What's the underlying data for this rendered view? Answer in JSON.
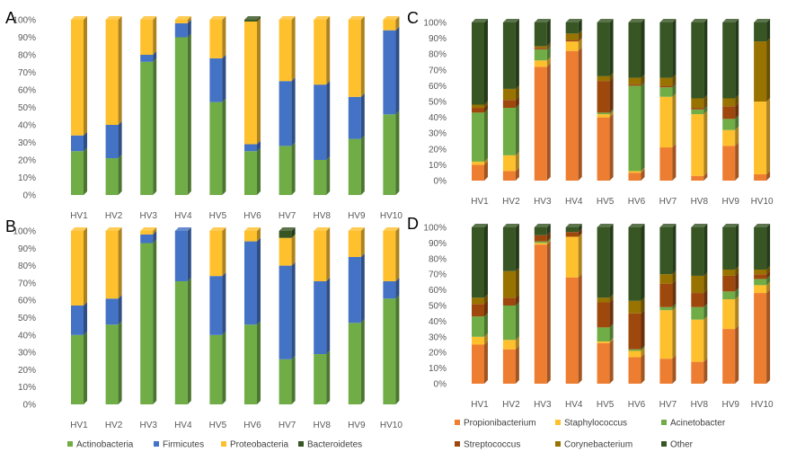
{
  "chart_data": [
    {
      "panel": "A",
      "type": "bar",
      "stacked": true,
      "percent": true,
      "ylim": [
        0,
        100
      ],
      "yticks": [
        "0%",
        "10%",
        "20%",
        "30%",
        "40%",
        "50%",
        "60%",
        "70%",
        "80%",
        "90%",
        "100%"
      ],
      "categories": [
        "HV1",
        "HV2",
        "HV3",
        "HV4",
        "HV5",
        "HV6",
        "HV7",
        "HV8",
        "HV9",
        "HV10"
      ],
      "series": [
        {
          "name": "Actinobacteria",
          "color": "#70ad47",
          "values": [
            25,
            21,
            76,
            90,
            53,
            25,
            28,
            20,
            32,
            46
          ]
        },
        {
          "name": "Firmicutes",
          "color": "#4472c4",
          "values": [
            9,
            19,
            4,
            8,
            25,
            4,
            37,
            43,
            24,
            48
          ]
        },
        {
          "name": "Proteobacteria",
          "color": "#ffc02d",
          "values": [
            66,
            60,
            20,
            2,
            22,
            70,
            35,
            37,
            44,
            6
          ]
        },
        {
          "name": "Bacteroidetes",
          "color": "#375623",
          "values": [
            0,
            0,
            0,
            0,
            0,
            1,
            0,
            0,
            0,
            0
          ]
        }
      ]
    },
    {
      "panel": "B",
      "type": "bar",
      "stacked": true,
      "percent": true,
      "ylim": [
        0,
        100
      ],
      "yticks": [
        "0%",
        "10%",
        "20%",
        "30%",
        "40%",
        "50%",
        "60%",
        "70%",
        "80%",
        "90%",
        "100%"
      ],
      "categories": [
        "HV1",
        "HV2",
        "HV3",
        "HV4",
        "HV5",
        "HV6",
        "HV7",
        "HV8",
        "HV9",
        "HV10"
      ],
      "series": [
        {
          "name": "Actinobacteria",
          "color": "#70ad47",
          "values": [
            40,
            46,
            93,
            71,
            40,
            46,
            26,
            29,
            47,
            61
          ]
        },
        {
          "name": "Firmicutes",
          "color": "#4472c4",
          "values": [
            17,
            15,
            5,
            29,
            34,
            48,
            54,
            42,
            38,
            10
          ]
        },
        {
          "name": "Proteobacteria",
          "color": "#ffc02d",
          "values": [
            43,
            39,
            2,
            0,
            26,
            6,
            16,
            29,
            15,
            29
          ]
        },
        {
          "name": "Bacteroidetes",
          "color": "#375623",
          "values": [
            0,
            0,
            0,
            0,
            0,
            0,
            4,
            0,
            0,
            0
          ]
        }
      ]
    },
    {
      "panel": "C",
      "type": "bar",
      "stacked": true,
      "percent": true,
      "ylim": [
        0,
        100
      ],
      "yticks": [
        "0%",
        "10%",
        "20%",
        "30%",
        "40%",
        "50%",
        "60%",
        "70%",
        "80%",
        "90%",
        "100%"
      ],
      "categories": [
        "HV1",
        "HV2",
        "HV3",
        "HV4",
        "HV5",
        "HV6",
        "HV7",
        "HV8",
        "HV9",
        "HV10"
      ],
      "series": [
        {
          "name": "Propionibacterium",
          "color": "#ed7d31",
          "values": [
            10,
            6,
            72,
            82,
            40,
            5,
            21,
            3,
            22,
            4
          ]
        },
        {
          "name": "Staphylococcus",
          "color": "#ffc02d",
          "values": [
            2,
            10,
            4,
            6,
            2,
            1,
            32,
            39,
            10,
            46
          ]
        },
        {
          "name": "Acinetobacter",
          "color": "#70ad47",
          "values": [
            31,
            30,
            7,
            0,
            1,
            54,
            6,
            3,
            7,
            0
          ]
        },
        {
          "name": "Streptococcus",
          "color": "#9e480e",
          "values": [
            3,
            5,
            1,
            1,
            20,
            1,
            1,
            1,
            8,
            0
          ]
        },
        {
          "name": "Corynebacterium",
          "color": "#997300",
          "values": [
            2,
            7,
            1,
            4,
            3,
            4,
            5,
            6,
            5,
            38
          ]
        },
        {
          "name": "Other",
          "color": "#375623",
          "values": [
            52,
            42,
            15,
            7,
            34,
            35,
            35,
            48,
            48,
            12
          ]
        }
      ]
    },
    {
      "panel": "D",
      "type": "bar",
      "stacked": true,
      "percent": true,
      "ylim": [
        0,
        100
      ],
      "yticks": [
        "0%",
        "10%",
        "20%",
        "30%",
        "40%",
        "50%",
        "60%",
        "70%",
        "80%",
        "90%",
        "100%"
      ],
      "categories": [
        "HV1",
        "HV2",
        "HV3",
        "HV4",
        "HV5",
        "HV6",
        "HV7",
        "HV8",
        "HV9",
        "HV10"
      ],
      "series": [
        {
          "name": "Propionibacterium",
          "color": "#ed7d31",
          "values": [
            25,
            22,
            89,
            68,
            26,
            17,
            16,
            14,
            35,
            58
          ]
        },
        {
          "name": "Staphylococcus",
          "color": "#ffc02d",
          "values": [
            5,
            6,
            1,
            26,
            1,
            4,
            31,
            27,
            19,
            5
          ]
        },
        {
          "name": "Acinetobacter",
          "color": "#70ad47",
          "values": [
            13,
            22,
            1,
            0,
            9,
            1,
            2,
            8,
            5,
            4
          ]
        },
        {
          "name": "Streptococcus",
          "color": "#9e480e",
          "values": [
            8,
            5,
            4,
            3,
            16,
            23,
            15,
            9,
            10,
            3
          ]
        },
        {
          "name": "Corynebacterium",
          "color": "#997300",
          "values": [
            4,
            17,
            0,
            0,
            3,
            8,
            6,
            11,
            4,
            3
          ]
        },
        {
          "name": "Other",
          "color": "#375623",
          "values": [
            45,
            28,
            5,
            3,
            45,
            47,
            30,
            31,
            27,
            27
          ]
        }
      ]
    }
  ],
  "legends": {
    "left": {
      "items": [
        {
          "label": "Actinobacteria",
          "color": "#70ad47"
        },
        {
          "label": "Firmicutes",
          "color": "#4472c4"
        },
        {
          "label": "Proteobacteria",
          "color": "#ffc02d"
        },
        {
          "label": "Bacteroidetes",
          "color": "#375623"
        }
      ]
    },
    "right": {
      "items": [
        {
          "label": "Propionibacterium",
          "color": "#ed7d31"
        },
        {
          "label": "Staphylococcus",
          "color": "#ffc02d"
        },
        {
          "label": "Acinetobacter",
          "color": "#70ad47"
        },
        {
          "label": "Streptococcus",
          "color": "#9e480e"
        },
        {
          "label": "Corynebacterium",
          "color": "#997300"
        },
        {
          "label": "Other",
          "color": "#375623"
        }
      ]
    }
  }
}
